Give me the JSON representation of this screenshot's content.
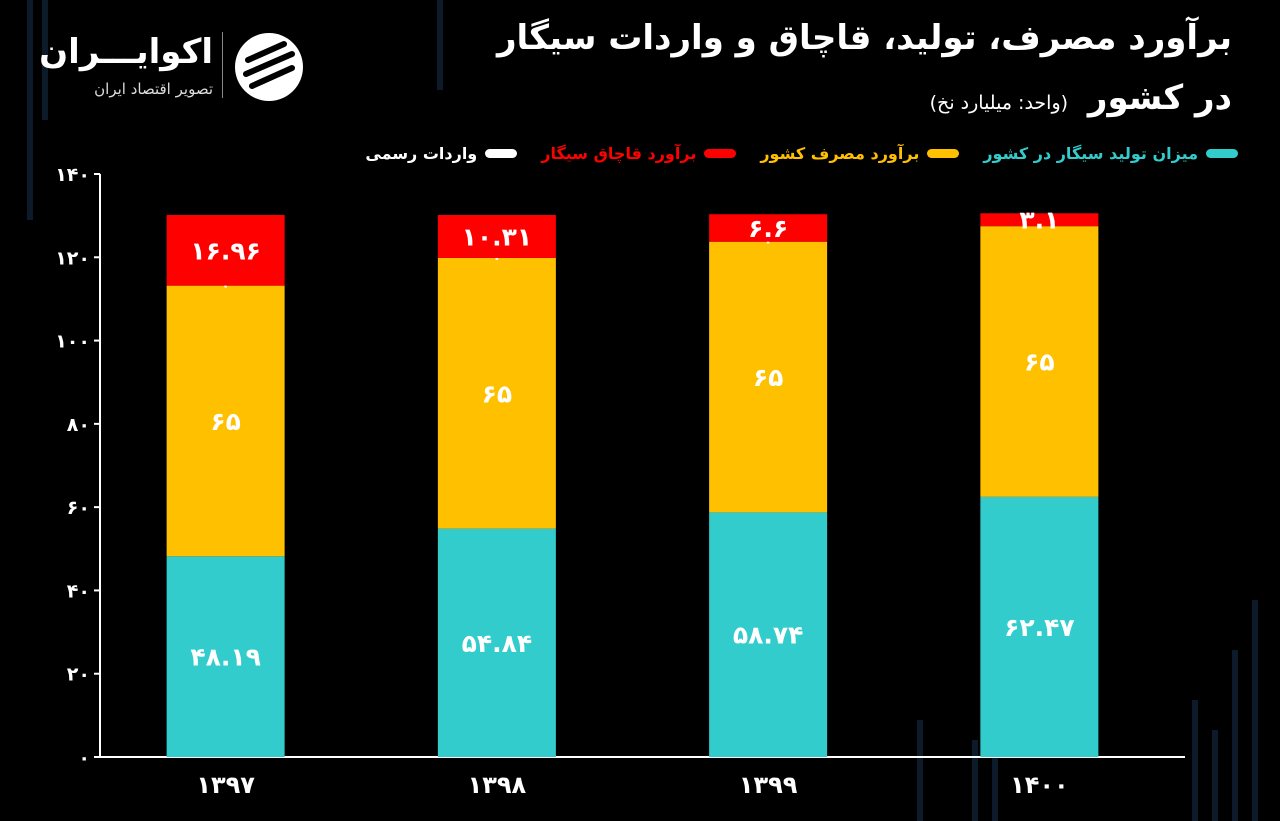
{
  "header": {
    "title_line1": "برآورد مصرف، تولید، قاچاق و واردات سیگار",
    "title_line2": "در کشور",
    "unit": "(واحد: میلیارد نخ)"
  },
  "logo": {
    "name": "اکوایـــران",
    "tagline": "تصویر اقتصاد ایران"
  },
  "legend": [
    {
      "label": "میزان تولید سیگار در کشور",
      "color": "#33cccc"
    },
    {
      "label": "برآورد مصرف کشور",
      "color": "#ffc000"
    },
    {
      "label": "برآورد قاچاق سیگار",
      "color": "#ff0000"
    },
    {
      "label": "واردات رسمی",
      "color": "#ffffff"
    }
  ],
  "chart_data": {
    "type": "bar",
    "stacked": true,
    "categories": [
      "۱۳۹۷",
      "۱۳۹۸",
      "۱۳۹۹",
      "۱۴۰۰"
    ],
    "series": [
      {
        "name": "میزان تولید سیگار در کشور",
        "color": "#33cccc",
        "values": [
          48.19,
          54.84,
          58.74,
          62.47
        ],
        "labels": [
          "۴۸.۱۹",
          "۵۴.۸۴",
          "۵۸.۷۴",
          "۶۲.۴۷"
        ]
      },
      {
        "name": "برآورد مصرف کشور",
        "color": "#ffc000",
        "values": [
          65,
          65,
          65,
          65
        ],
        "labels": [
          "۶۵",
          "۶۵",
          "۶۵",
          "۶۵"
        ]
      },
      {
        "name": "واردات رسمی",
        "color": "#ffffff",
        "values": [
          0,
          0,
          0,
          0
        ],
        "labels": [
          "۰",
          "۰",
          "۰",
          "۰"
        ]
      },
      {
        "name": "برآورد قاچاق سیگار",
        "color": "#ff0000",
        "values": [
          16.96,
          10.31,
          6.6,
          3.1
        ],
        "labels": [
          "۱۶.۹۶",
          "۱۰.۳۱",
          "۶.۶",
          "۳.۱"
        ]
      }
    ],
    "yticks": [
      0,
      20,
      40,
      60,
      80,
      100,
      120,
      140
    ],
    "ytick_labels": [
      "۰",
      "۲۰",
      "۴۰",
      "۶۰",
      "۸۰",
      "۱۰۰",
      "۱۲۰",
      "۱۴۰"
    ],
    "ylim": [
      0,
      140
    ],
    "grid": false
  }
}
